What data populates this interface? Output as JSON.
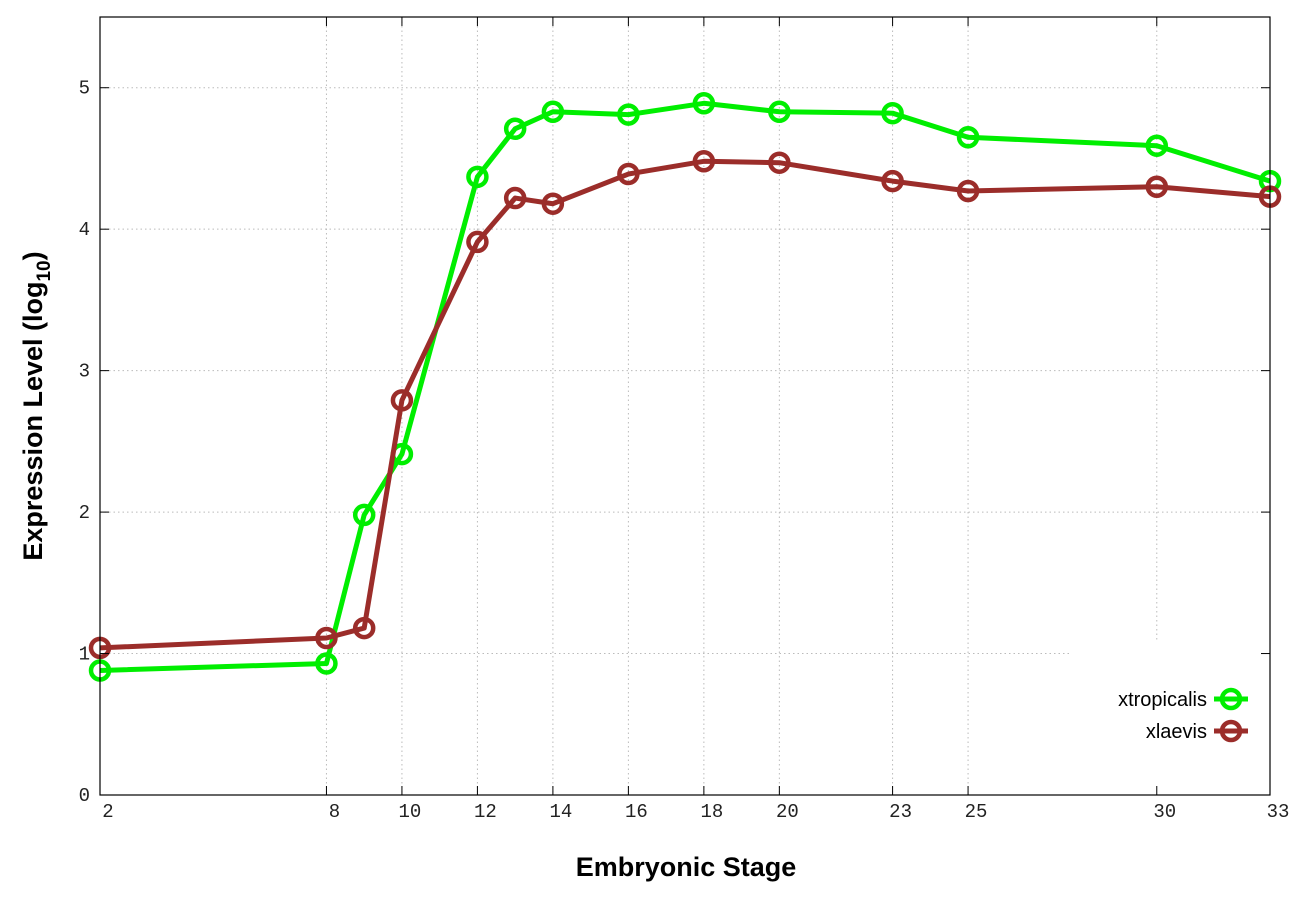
{
  "chart_data": {
    "type": "line",
    "x_label": "Embryonic Stage",
    "y_label": [
      "Expression Level (log",
      "10",
      ")"
    ],
    "x": [
      2,
      8,
      9,
      10,
      12,
      13,
      14,
      16,
      18,
      20,
      23,
      25,
      30,
      33
    ],
    "series": [
      {
        "name": "xtropicalis",
        "color": "#00ee00",
        "values": [
          0.88,
          0.93,
          1.98,
          2.41,
          4.37,
          4.71,
          4.83,
          4.81,
          4.89,
          4.83,
          4.82,
          4.65,
          4.59,
          4.34
        ]
      },
      {
        "name": "xlaevis",
        "color": "#9b2d2a",
        "values": [
          1.04,
          1.11,
          1.18,
          2.79,
          3.91,
          4.22,
          4.18,
          4.39,
          4.48,
          4.47,
          4.34,
          4.27,
          4.3,
          4.23
        ]
      }
    ],
    "xlim": [
      2,
      33
    ],
    "xticks": [
      2,
      8,
      10,
      12,
      14,
      16,
      18,
      20,
      23,
      25,
      30,
      33
    ],
    "ylim": [
      0,
      5.5
    ],
    "yticks": [
      0,
      1,
      2,
      3,
      4,
      5
    ],
    "grid": true,
    "legend": "lower right"
  }
}
